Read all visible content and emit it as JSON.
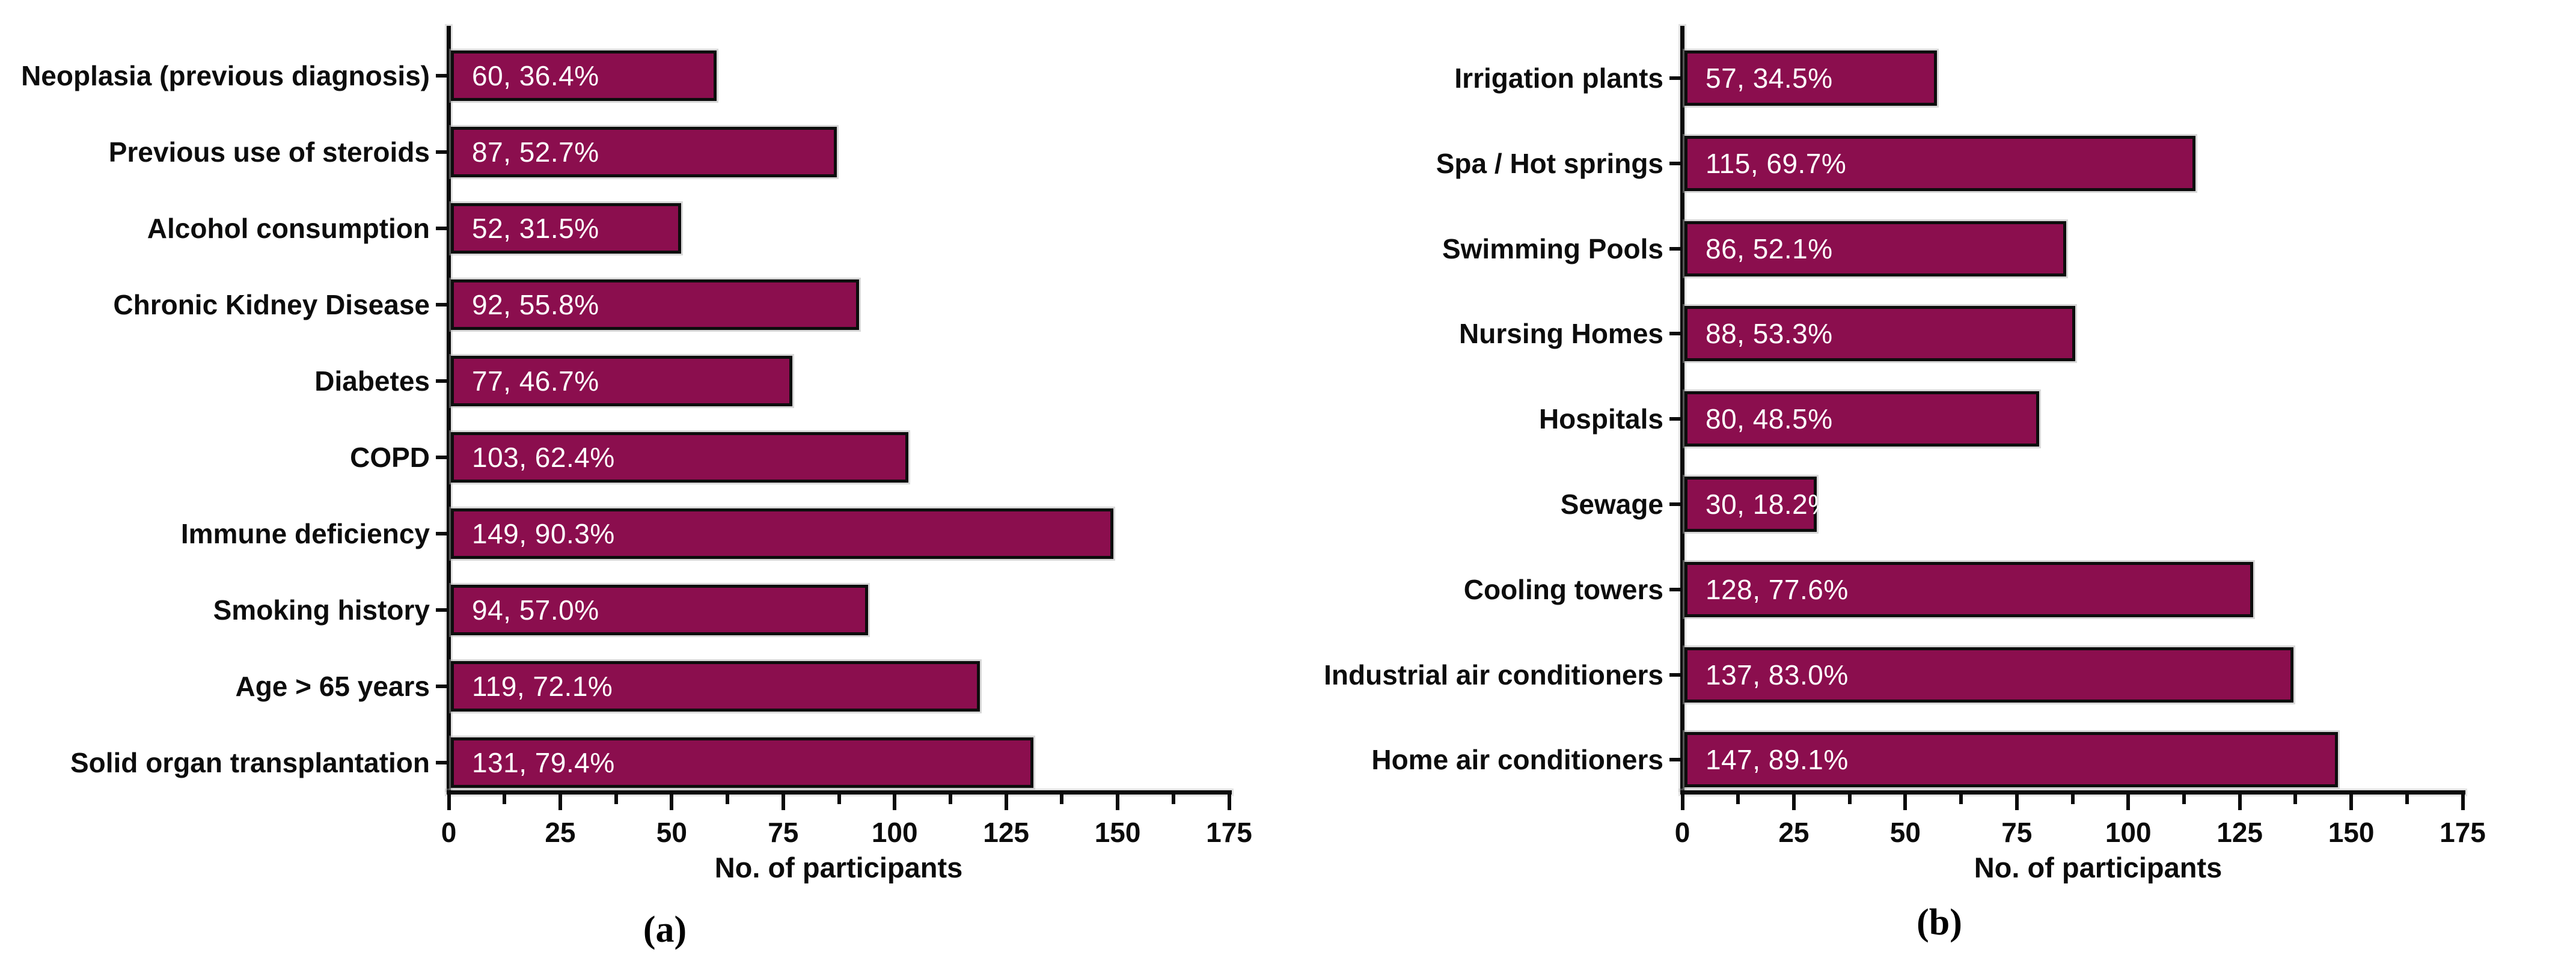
{
  "figure": {
    "description": "Two-panel horizontal bar chart",
    "bar_color": "#8B0E4E",
    "axis_color": "#0b0b0b"
  },
  "chart_data": [
    {
      "type": "bar",
      "orientation": "horizontal",
      "panel_label": "(a)",
      "title": "",
      "xlabel": "No. of participants",
      "ylabel": "",
      "xlim": [
        0,
        175
      ],
      "xticks": [
        0,
        25,
        50,
        75,
        100,
        125,
        150,
        175
      ],
      "minor_tick_step": 12.5,
      "grid": false,
      "legend": "none",
      "bar_color": "#8B0E4E",
      "categories": [
        "Neoplasia (previous diagnosis)",
        "Previous use of steroids",
        "Alcohol consumption",
        "Chronic Kidney Disease",
        "Diabetes",
        "COPD",
        "Immune deficiency",
        "Smoking history",
        "Age > 65 years",
        "Solid organ transplantation"
      ],
      "values": [
        60,
        87,
        52,
        92,
        77,
        103,
        149,
        94,
        119,
        131
      ],
      "percentages": [
        36.4,
        52.7,
        31.5,
        55.8,
        46.7,
        62.4,
        90.3,
        57.0,
        72.1,
        79.4
      ],
      "bar_value_labels": [
        "60, 36.4%",
        "87, 52.7%",
        "52, 31.5%",
        "92, 55.8%",
        "77, 46.7%",
        "103, 62.4%",
        "149, 90.3%",
        "94, 57.0%",
        "119, 72.1%",
        "131, 79.4%"
      ]
    },
    {
      "type": "bar",
      "orientation": "horizontal",
      "panel_label": "(b)",
      "title": "",
      "xlabel": "No. of participants",
      "ylabel": "",
      "xlim": [
        0,
        175
      ],
      "xticks": [
        0,
        25,
        50,
        75,
        100,
        125,
        150,
        175
      ],
      "minor_tick_step": 12.5,
      "grid": false,
      "legend": "none",
      "bar_color": "#8B0E4E",
      "categories": [
        "Irrigation plants",
        "Spa / Hot springs",
        "Swimming Pools",
        "Nursing Homes",
        "Hospitals",
        "Sewage",
        "Cooling towers",
        "Industrial air conditioners",
        "Home air conditioners"
      ],
      "values": [
        57,
        115,
        86,
        88,
        80,
        30,
        128,
        137,
        147
      ],
      "percentages": [
        34.5,
        69.7,
        52.1,
        53.3,
        48.5,
        18.2,
        77.6,
        83.0,
        89.1
      ],
      "bar_value_labels": [
        "57, 34.5%",
        "115, 69.7%",
        "86, 52.1%",
        "88, 53.3%",
        "80, 48.5%",
        "30, 18.2%",
        "128, 77.6%",
        "137, 83.0%",
        "147, 89.1%"
      ]
    }
  ]
}
